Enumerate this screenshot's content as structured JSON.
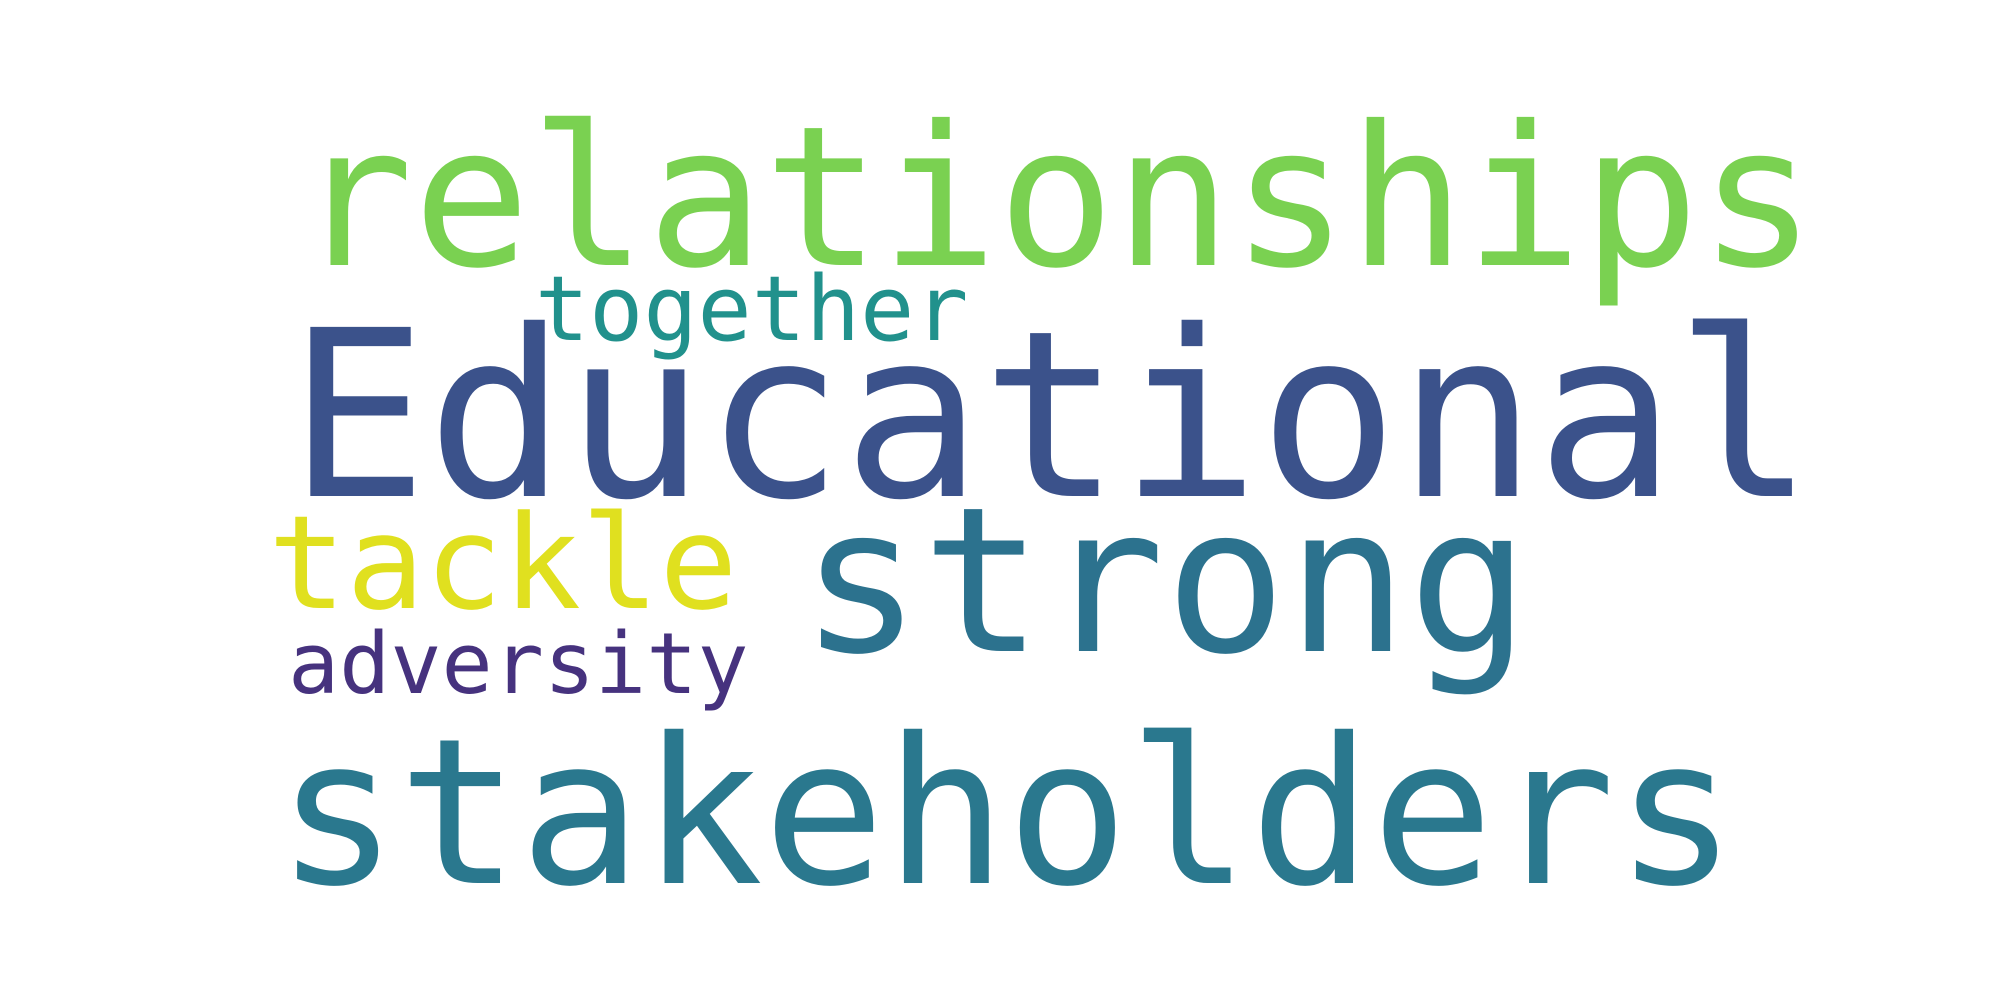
{
  "background_color": "#ffffff",
  "words": [
    {
      "id": "relationships",
      "text": "relationships",
      "color": "#7ad151"
    },
    {
      "id": "together",
      "text": "together",
      "color": "#21918c"
    },
    {
      "id": "educational",
      "text": "Educational",
      "color": "#3b528b"
    },
    {
      "id": "tackle",
      "text": "tackle",
      "color": "#e0e01f"
    },
    {
      "id": "strong",
      "text": "strong",
      "color": "#2c728e"
    },
    {
      "id": "adversity",
      "text": "adversity",
      "color": "#46327e"
    },
    {
      "id": "stakeholders",
      "text": "stakeholders",
      "color": "#2a788e"
    }
  ]
}
